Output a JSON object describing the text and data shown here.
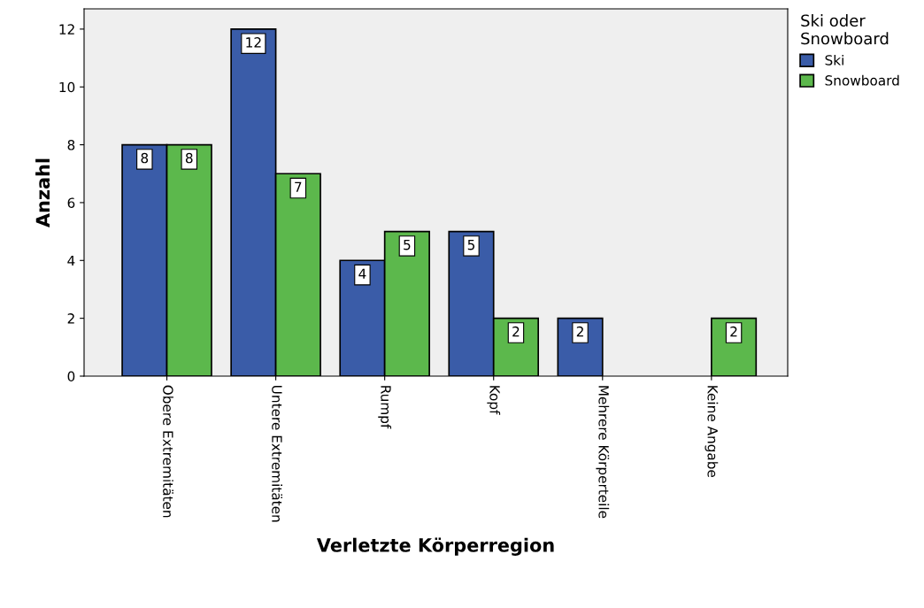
{
  "chart_data": {
    "type": "bar",
    "xlabel": "Verletzte Körperregion",
    "ylabel": "Anzahl",
    "legend_title": "Ski oder\nSnowboard",
    "categories": [
      "Obere Extremitäten",
      "Untere Extremitäten",
      "Rumpf",
      "Kopf",
      "Mehrere Körperteile",
      "Keine Angabe"
    ],
    "series": [
      {
        "name": "Ski",
        "color": "#3a5ca8",
        "values": [
          8,
          12,
          4,
          5,
          2,
          null
        ]
      },
      {
        "name": "Snowboard",
        "color": "#5cb84c",
        "values": [
          8,
          7,
          5,
          2,
          null,
          2
        ]
      }
    ],
    "ylim": [
      0,
      12.7
    ],
    "yticks": [
      0,
      2,
      4,
      6,
      8,
      10,
      12
    ],
    "data_labels": true,
    "grid": false,
    "legend": "right"
  }
}
